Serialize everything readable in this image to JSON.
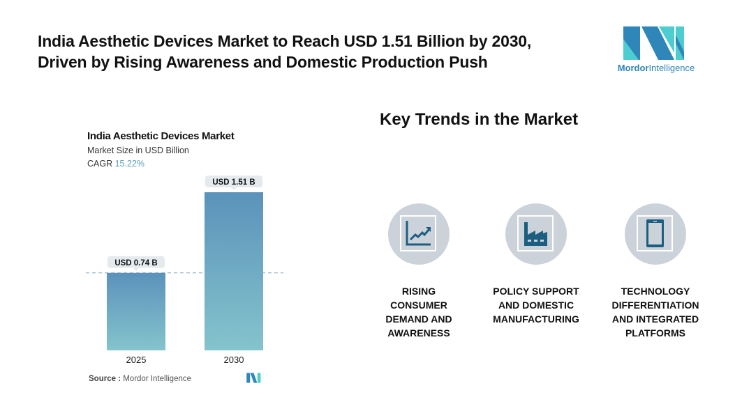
{
  "headline": [
    "India Aesthetic Devices Market to Reach USD 1.51 Billion by 2030,",
    "Driven by Rising Awareness and Domestic Production Push"
  ],
  "logo": {
    "text_bold": "Mordor",
    "text_light": "Intelligence",
    "colors": [
      "#2e86b9",
      "#4ecdd1"
    ]
  },
  "chart_data": {
    "type": "bar",
    "title": "India Aesthetic Devices Market",
    "subtitle": "Market Size in USD Billion",
    "cagr_label": "CAGR",
    "cagr_value": "15.22%",
    "categories": [
      "2025",
      "2030"
    ],
    "values": [
      0.74,
      1.51
    ],
    "data_labels": [
      "USD 0.74 B",
      "USD 1.51 B"
    ],
    "ylim": [
      0,
      1.51
    ],
    "grid": false,
    "reference_line": 0.74,
    "bar_gradient": [
      "#5b92bb",
      "#84c4cc"
    ]
  },
  "source": {
    "label": "Source :",
    "value": "Mordor Intelligence"
  },
  "trends": {
    "title": "Key Trends in the Market",
    "items": [
      {
        "icon": "rising-chart-icon",
        "label": [
          "RISING",
          "CONSUMER",
          "DEMAND AND",
          "AWARENESS"
        ]
      },
      {
        "icon": "factory-icon",
        "label": [
          "POLICY SUPPORT",
          "AND DOMESTIC",
          "MANUFACTURING"
        ]
      },
      {
        "icon": "smartphone-icon",
        "label": [
          "TECHNOLOGY",
          "DIFFERENTIATION",
          "AND INTEGRATED",
          "PLATFORMS"
        ]
      }
    ],
    "icon_color": "#1b5e80"
  }
}
